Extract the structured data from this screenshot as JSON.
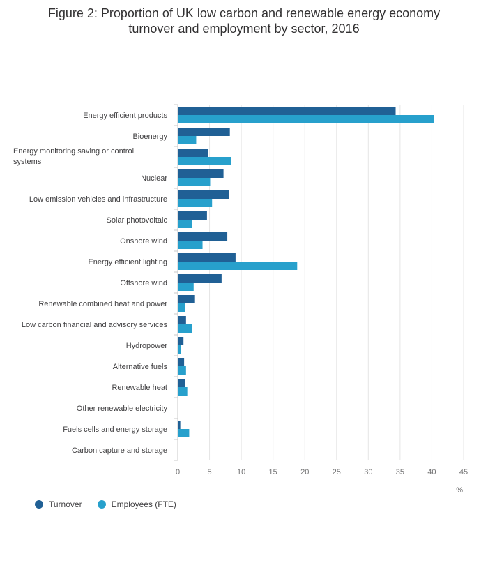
{
  "title_line1": "Figure 2: Proportion of UK low carbon and renewable energy economy",
  "title_line2": "turnover and employment by sector, 2016",
  "chart_data": {
    "type": "bar",
    "orientation": "horizontal",
    "categories": [
      "Energy efficient products",
      "Bioenergy",
      "Energy monitoring saving or control systems",
      "Nuclear",
      "Low emission vehicles and infrastructure",
      "Solar photovoltaic",
      "Onshore wind",
      "Energy efficient lighting",
      "Offshore wind",
      "Renewable combined heat and power",
      "Low carbon financial and advisory services",
      "Hydropower",
      "Alternative fuels",
      "Renewable heat",
      "Other renewable electricity",
      "Fuels cells and energy storage",
      "Carbon capture and storage"
    ],
    "series": [
      {
        "name": "Turnover",
        "color": "#206095",
        "values": [
          34.3,
          8.2,
          4.8,
          7.2,
          8.1,
          4.6,
          7.8,
          9.1,
          6.9,
          2.6,
          1.3,
          0.9,
          1.0,
          1.1,
          0.1,
          0.4,
          0.0
        ]
      },
      {
        "name": "Employees (FTE)",
        "color": "#27a0cc",
        "values": [
          40.3,
          2.9,
          8.4,
          5.1,
          5.4,
          2.3,
          3.9,
          18.8,
          2.5,
          1.1,
          2.3,
          0.5,
          1.3,
          1.5,
          0.0,
          1.8,
          0.0
        ]
      }
    ],
    "xlim": [
      0,
      45
    ],
    "xticks": [
      0,
      5,
      10,
      15,
      20,
      25,
      30,
      35,
      40,
      45
    ],
    "xunit": "%",
    "grid": true,
    "legend": "bottom-left"
  }
}
